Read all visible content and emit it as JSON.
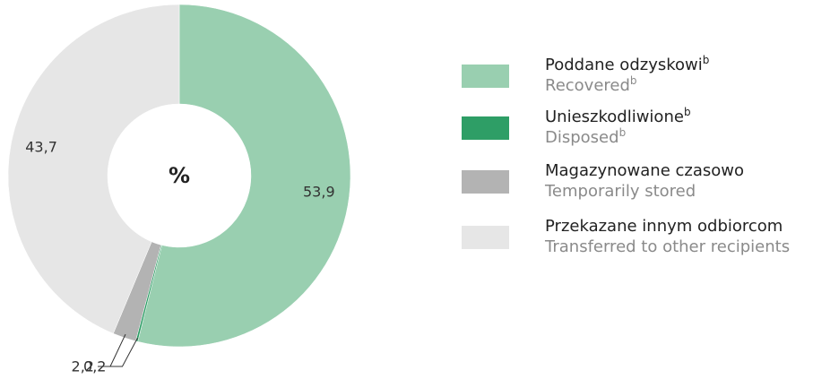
{
  "chart_data": {
    "type": "pie",
    "center_label": "%",
    "categories": [
      "Poddane odzyskowi",
      "Unieszkodliwione",
      "Magazynowane czasowo",
      "Przekazane innym odbiorcom"
    ],
    "category_notes": [
      "b",
      "b",
      null,
      null
    ],
    "translations": [
      "Recovered",
      "Disposed",
      "Temporarily stored",
      "Transferred to other recipients"
    ],
    "translation_notes": [
      "b",
      "b",
      null,
      null
    ],
    "values": [
      53.9,
      0.2,
      2.2,
      43.7
    ],
    "value_labels": [
      "53,9",
      "0,2",
      "2,2",
      "43,7"
    ],
    "colors": [
      "#99cfb0",
      "#2e9e66",
      "#b3b3b3",
      "#e6e6e6"
    ]
  }
}
